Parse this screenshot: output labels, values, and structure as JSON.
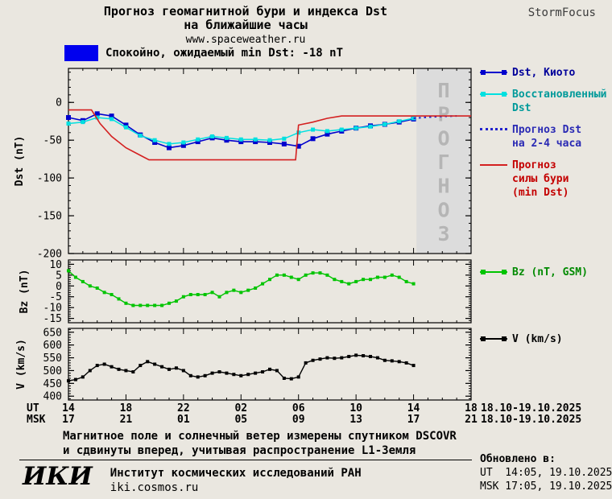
{
  "header": {
    "title_line1": "Прогноз геомагнитной бури и индекса Dst",
    "title_line2": "на ближайшие часы",
    "site": "www.spaceweather.ru",
    "brand": "StormFocus"
  },
  "status_legend": {
    "text": "Спокойно, ожидаемый min Dst: -18 nT"
  },
  "colors": {
    "background": "#eae7e0",
    "legend_box": "#0000ee",
    "dst_kyoto": "#0000cd",
    "restored": "#00e0e0",
    "forecast_dst": "#2222cc",
    "storm_force": "#d42020",
    "bz": "#00c400",
    "v": "#000000",
    "prognoz_band": "#dcdcdc",
    "prognoz_text": "#b5b5b5"
  },
  "x_axis": {
    "ut_label": "UT",
    "msk_label": "MSK",
    "ticks": [
      {
        "h": 0,
        "ut": "14",
        "msk": "17"
      },
      {
        "h": 4,
        "ut": "18",
        "msk": "21"
      },
      {
        "h": 8,
        "ut": "22",
        "msk": "01"
      },
      {
        "h": 12,
        "ut": "02",
        "msk": "05"
      },
      {
        "h": 16,
        "ut": "06",
        "msk": "09"
      },
      {
        "h": 20,
        "ut": "10",
        "msk": "13"
      },
      {
        "h": 24,
        "ut": "14",
        "msk": "17"
      },
      {
        "h": 28,
        "ut": "18",
        "msk": "21"
      }
    ],
    "date_ut": "18.10-19.10.2025",
    "date_msk": "18.10-19.10.2025"
  },
  "chart_data": [
    {
      "id": "dst",
      "type": "line",
      "ylabel": "Dst (nT)",
      "ylabel_x": 28,
      "ylim": [
        45,
        -200
      ],
      "yticks": [
        0,
        -50,
        -100,
        -150,
        -200
      ],
      "yminor": 10,
      "xlim": [
        0,
        28
      ],
      "forecast_band": {
        "from": 24.2,
        "to": 28,
        "label": "ПРОГНОЗ"
      },
      "series": [
        {
          "name": "Dst, Киото",
          "color": "dst_kyoto",
          "marker": true,
          "width": 1.6,
          "msize": 6,
          "x_start": 0,
          "x_step": 1,
          "values": [
            -20,
            -24,
            -15,
            -18,
            -30,
            -43,
            -53,
            -60,
            -57,
            -52,
            -47,
            -50,
            -52,
            -52,
            -53,
            -55,
            -58,
            -48,
            -42,
            -38,
            -34,
            -31,
            -29,
            -26,
            -22
          ]
        },
        {
          "name": "Восстановленный Dst",
          "color": "restored",
          "marker": true,
          "width": 1.5,
          "msize": 5,
          "x_start": 0,
          "x_step": 1,
          "values": [
            -28,
            -26,
            -20,
            -22,
            -33,
            -44,
            -50,
            -55,
            -53,
            -49,
            -45,
            -47,
            -49,
            -49,
            -50,
            -48,
            -40,
            -36,
            -38,
            -36,
            -34,
            -32,
            -29,
            -25,
            -21
          ]
        },
        {
          "name": "Прогноз Dst на 2-4 часа",
          "color": "forecast_dst",
          "style": "dotted",
          "width": 2,
          "points": [
            [
              24,
              -21
            ],
            [
              25,
              -19.5
            ],
            [
              26,
              -18.5
            ],
            [
              27,
              -18
            ]
          ]
        },
        {
          "name": "Прогноз силы бури (min Dst)",
          "color": "storm_force",
          "width": 1.6,
          "points": [
            [
              0,
              -10
            ],
            [
              1.6,
              -10
            ],
            [
              2.2,
              -28
            ],
            [
              3,
              -45
            ],
            [
              4,
              -60
            ],
            [
              5,
              -70
            ],
            [
              5.6,
              -76
            ],
            [
              15.8,
              -76
            ],
            [
              16,
              -30
            ],
            [
              17,
              -26
            ],
            [
              18,
              -21
            ],
            [
              19,
              -18
            ],
            [
              28,
              -18
            ]
          ]
        }
      ]
    },
    {
      "id": "bz",
      "type": "line",
      "ylabel": "Bz (nT)",
      "ylabel_x": 34,
      "ylim": [
        12,
        -17
      ],
      "yticks": [
        10,
        5,
        0,
        -5,
        -10,
        -15
      ],
      "yminor": 1,
      "xlim": [
        0,
        28
      ],
      "series": [
        {
          "name": "Bz (nT, GSM)",
          "color": "bz",
          "marker": true,
          "width": 1.4,
          "msize": 4,
          "x_start": 0,
          "x_step": 0.5,
          "values": [
            7,
            4,
            2,
            0,
            -1,
            -3,
            -4,
            -6,
            -8,
            -9,
            -9,
            -9,
            -9,
            -9,
            -8,
            -7,
            -5,
            -4,
            -4,
            -4,
            -3,
            -5,
            -3,
            -2,
            -3,
            -2,
            -1,
            1,
            3,
            5,
            5,
            4,
            3,
            5,
            6,
            6,
            5,
            3,
            2,
            1,
            2,
            3,
            3,
            4,
            4,
            5,
            4,
            2,
            1
          ]
        }
      ]
    },
    {
      "id": "v",
      "type": "line",
      "ylabel": "V (km/s)",
      "ylabel_x": 30,
      "ylim": [
        665,
        385
      ],
      "yticks": [
        650,
        600,
        550,
        500,
        450,
        400
      ],
      "yminor": 10,
      "xlim": [
        0,
        28
      ],
      "series": [
        {
          "name": "V (km/s)",
          "color": "v",
          "marker": true,
          "width": 1.4,
          "msize": 4,
          "x_start": 0,
          "x_step": 0.5,
          "values": [
            460,
            465,
            475,
            500,
            520,
            525,
            515,
            505,
            500,
            495,
            520,
            535,
            525,
            515,
            505,
            510,
            500,
            480,
            475,
            480,
            490,
            495,
            490,
            485,
            480,
            485,
            490,
            495,
            505,
            500,
            470,
            468,
            475,
            530,
            540,
            545,
            550,
            548,
            550,
            555,
            560,
            558,
            555,
            550,
            540,
            538,
            535,
            530,
            520
          ]
        }
      ]
    }
  ],
  "legend": {
    "main": [
      {
        "label": "Dst, Киото",
        "color": "dst_kyoto",
        "text_color": "#00009a"
      },
      {
        "label": "Восстановленный\nDst",
        "color": "restored",
        "text_color": "#009a9a"
      },
      {
        "label": "Прогноз Dst\nна 2-4 часа",
        "color": "forecast_dst",
        "text_color": "#2a2ab4"
      },
      {
        "label": "Прогноз\nсилы бури\n(min Dst)",
        "color": "storm_force",
        "text_color": "#c40000"
      }
    ],
    "bz": {
      "label": "Bz (nT, GSM)",
      "color": "bz",
      "text_color": "#008a00"
    },
    "v": {
      "label": "V (km/s)",
      "color": "v",
      "text_color": "#000000"
    }
  },
  "footnote": {
    "line1": "Магнитное поле и солнечный ветер измерены спутником DSCOVR",
    "line2": "и сдвинуты вперед, учитывая распространение L1-Земля"
  },
  "footer": {
    "logo": "ИКИ",
    "institute": "Институт космических исследований РАН",
    "site": "iki.cosmos.ru",
    "updated_label": "Обновлено в:",
    "updated_ut": "UT  14:05, 19.10.2025",
    "updated_msk": "MSK 17:05, 19.10.2025"
  }
}
